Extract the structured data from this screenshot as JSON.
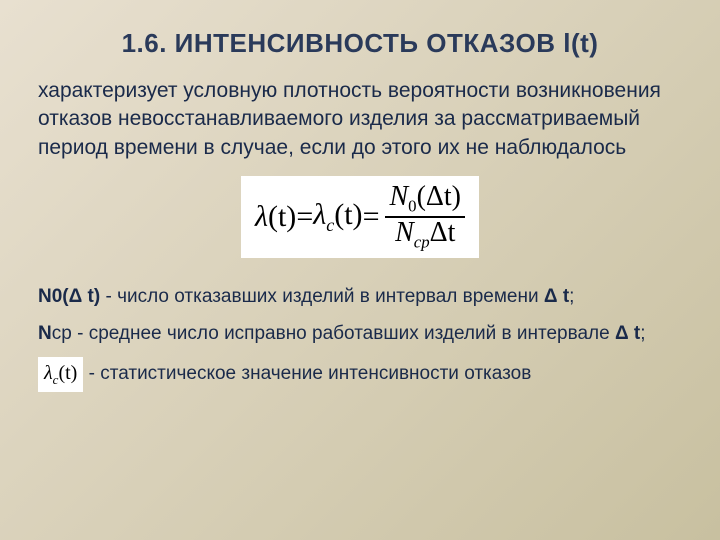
{
  "title": "1.6. ИНТЕНСИВНОСТЬ ОТКАЗОВ l(t)",
  "paragraph": "характеризует условную плотность вероятности возникновения отказов невосстанавливаемого изделия за рассматриваемый период времени в случае, если до этого их не наблюдалось",
  "formula": {
    "lhs1_sym": "λ",
    "lhs1_arg": "(t)",
    "eq": " = ",
    "lhs2_sym": "λ",
    "lhs2_sub": "c",
    "lhs2_arg": "(t)",
    "num_sym": "N",
    "num_sub": "0",
    "num_rest": "(Δt)",
    "den_sym": "N",
    "den_sub": "cp",
    "den_rest": "Δt"
  },
  "def1_lead": "N0(Δ t)",
  "def1_rest": " - число отказавших изделий в интервал времени ",
  "def1_tail_b": "Δ t",
  "def1_tail": ";",
  "def2_lead": "N",
  "def2_lead2": "ср",
  "def2_rest": " - среднее число исправно работавших изделий в интервале ",
  "def2_tail_b": "Δ t",
  "def2_tail": ";",
  "def3_box_sym": "λ",
  "def3_box_sub": "c",
  "def3_box_arg": "(t)",
  "def3_rest": " - статистическое значение интенсивности отказов"
}
